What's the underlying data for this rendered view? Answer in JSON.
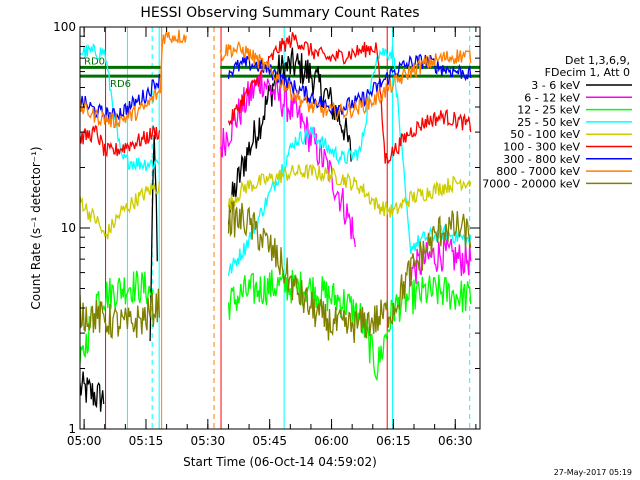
{
  "chart_data": {
    "type": "line",
    "title": "HESSI Observing Summary Count Rates",
    "xlabel": "Start Time (06-Oct-14 04:59:02)",
    "ylabel": "Count Rate (s⁻¹ detector⁻¹)",
    "yscale": "log",
    "ylim": [
      1,
      100
    ],
    "xlim_minutes": [
      0,
      97
    ],
    "y_ticks": [
      "1",
      "10",
      "100"
    ],
    "x_ticks": [
      "05:00",
      "05:15",
      "05:30",
      "05:45",
      "06:00",
      "06:15",
      "06:30"
    ],
    "legend_header": [
      "Det 1,3,6,9,",
      "FDecim 1, Att 0"
    ],
    "legend_position": "top-right",
    "footer": "27-May-2017 05:19",
    "flags": [
      {
        "label": "RD0",
        "color": "#007000",
        "y": 63
      },
      {
        "label": "RD6",
        "color": "#007000",
        "y": 57
      }
    ],
    "series": [
      {
        "name": "3 - 6 keV",
        "color": "#000000",
        "x": [
          0,
          6,
          6.1,
          12,
          17,
          18,
          19,
          20,
          34,
          36,
          40,
          44,
          48,
          52,
          56,
          60,
          64,
          66,
          68,
          80,
          84,
          88,
          92,
          95
        ],
        "y": [
          1.6,
          1.4,
          null,
          null,
          3,
          30,
          5,
          null,
          null,
          12,
          22,
          35,
          60,
          65,
          58,
          45,
          32,
          22,
          null,
          null,
          null,
          null,
          null,
          null
        ]
      },
      {
        "name": "6 - 12 keV",
        "color": "#ff00ff",
        "x": [
          34,
          36,
          40,
          44,
          48,
          52,
          56,
          60,
          64,
          66,
          67,
          68,
          80,
          84,
          88,
          92,
          95
        ],
        "y": [
          25,
          30,
          42,
          55,
          45,
          38,
          28,
          20,
          13,
          10,
          7,
          null,
          6,
          7,
          7.5,
          7,
          7
        ]
      },
      {
        "name": "12 - 25 keV",
        "color": "#00ff00",
        "x": [
          0,
          4,
          8,
          12,
          16,
          18,
          19.5,
          34,
          36,
          40,
          44,
          48,
          52,
          56,
          60,
          64,
          68,
          72,
          76,
          80,
          84,
          88,
          92,
          95
        ],
        "y": [
          2,
          4.5,
          4.8,
          5.2,
          5,
          4.6,
          null,
          null,
          4.2,
          4.8,
          5,
          5.2,
          5.1,
          5,
          4.6,
          4.3,
          3.6,
          2,
          4,
          4.5,
          4.8,
          4.8,
          4.6,
          4.5
        ]
      },
      {
        "name": "25 - 50 keV",
        "color": "#00ffff",
        "x": [
          0,
          6,
          10,
          14,
          18,
          19.5,
          34,
          36,
          40,
          44,
          48,
          52,
          56,
          60,
          64,
          68,
          72,
          76,
          80,
          84,
          88,
          92,
          95
        ],
        "y": [
          75,
          75,
          22,
          21,
          21,
          22,
          null,
          6,
          8,
          12,
          18,
          27,
          30,
          25,
          22,
          24,
          75,
          75,
          8,
          9,
          9.5,
          9,
          8.5
        ]
      },
      {
        "name": "50 - 100 keV",
        "color": "#cccc00",
        "x": [
          0,
          2,
          4,
          6,
          10,
          14,
          18,
          19.5,
          34,
          36,
          40,
          44,
          48,
          52,
          56,
          60,
          64,
          68,
          72,
          76,
          80,
          84,
          88,
          92,
          95
        ],
        "y": [
          14,
          12,
          11,
          9,
          12,
          14,
          16,
          16,
          null,
          13,
          16,
          17,
          18,
          19,
          19,
          18.5,
          17.5,
          16,
          13,
          12,
          14,
          15,
          16,
          17,
          17
        ]
      },
      {
        "name": "100 - 300 keV",
        "color": "#ff0000",
        "x": [
          0,
          4,
          6,
          8,
          12,
          16,
          18,
          19.5,
          34,
          36,
          40,
          44,
          48,
          52,
          56,
          60,
          64,
          68,
          72,
          74,
          76,
          80,
          84,
          88,
          92,
          95
        ],
        "y": [
          28,
          30,
          24,
          24,
          26,
          28,
          30,
          30,
          null,
          33,
          45,
          58,
          78,
          88,
          76,
          70,
          72,
          76,
          80,
          22,
          24,
          30,
          34,
          36,
          34,
          32
        ]
      },
      {
        "name": "300 - 800 keV",
        "color": "#0000ff",
        "x": [
          0,
          4,
          8,
          12,
          16,
          18,
          19.5,
          34,
          36,
          40,
          44,
          48,
          52,
          56,
          60,
          64,
          68,
          72,
          76,
          80,
          84,
          88,
          92,
          95
        ],
        "y": [
          43,
          38,
          36,
          40,
          46,
          52,
          55,
          null,
          60,
          66,
          64,
          57,
          50,
          45,
          40,
          40,
          43,
          50,
          60,
          66,
          68,
          62,
          60,
          58
        ]
      },
      {
        "name": "800 - 7000 keV",
        "color": "#ff7f00",
        "x": [
          0,
          4,
          8,
          12,
          16,
          18,
          19.5,
          20,
          26,
          26.1,
          34,
          36,
          40,
          44,
          48,
          52,
          56,
          60,
          64,
          68,
          72,
          76,
          80,
          84,
          88,
          92,
          95
        ],
        "y": [
          40,
          36,
          34,
          36,
          40,
          45,
          48,
          90,
          90,
          null,
          72,
          78,
          76,
          66,
          56,
          46,
          40,
          38,
          38,
          40,
          44,
          52,
          60,
          66,
          70,
          72,
          72
        ]
      },
      {
        "name": "7000 - 20000 keV",
        "color": "#808000",
        "x": [
          0,
          4,
          8,
          12,
          16,
          18,
          19.5,
          34,
          36,
          40,
          44,
          48,
          52,
          56,
          60,
          64,
          68,
          72,
          76,
          80,
          84,
          88,
          92,
          95
        ],
        "y": [
          3.8,
          3.6,
          3.4,
          3.3,
          3.6,
          4,
          4.2,
          null,
          11,
          11,
          9,
          7,
          5,
          4,
          3.4,
          3.2,
          3.3,
          3.5,
          4,
          6,
          8,
          10,
          10,
          9
        ]
      }
    ],
    "markers": [
      {
        "minute": 6.2,
        "color": "#ff0000",
        "style": "solid"
      },
      {
        "minute": 11.5,
        "color": "#00ffff",
        "style": "solid"
      },
      {
        "minute": 17.5,
        "color": "#00ffff",
        "style": "dashed"
      },
      {
        "minute": 19.2,
        "color": "#00ffff",
        "style": "solid"
      },
      {
        "minute": 19.8,
        "color": "#ff7f00",
        "style": "solid"
      },
      {
        "minute": 32.5,
        "color": "#ff7f00",
        "style": "dashed"
      },
      {
        "minute": 34.2,
        "color": "#ff0000",
        "style": "solid"
      },
      {
        "minute": 49.5,
        "color": "#00ffff",
        "style": "solid"
      },
      {
        "minute": 74.5,
        "color": "#ff0000",
        "style": "solid"
      },
      {
        "minute": 75.8,
        "color": "#00ffff",
        "style": "solid"
      },
      {
        "minute": 94.5,
        "color": "#00ffff",
        "style": "dashed"
      }
    ]
  }
}
